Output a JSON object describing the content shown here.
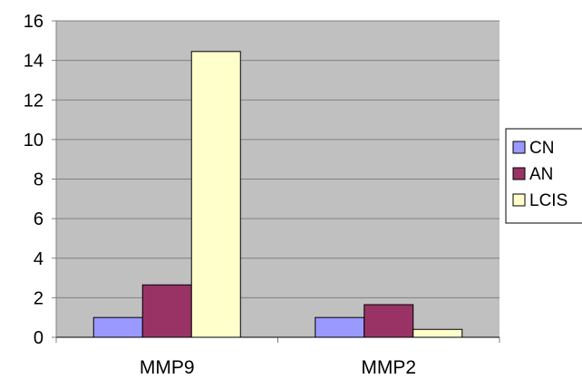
{
  "chart_data": {
    "type": "bar",
    "title": "",
    "xlabel": "",
    "ylabel": "",
    "categories": [
      "MMP9",
      "MMP2"
    ],
    "series": [
      {
        "name": "CN",
        "values": [
          1.0,
          1.0
        ],
        "color": "#9999ff"
      },
      {
        "name": "AN",
        "values": [
          2.65,
          1.65
        ],
        "color": "#993366"
      },
      {
        "name": "LCIS",
        "values": [
          14.45,
          0.4
        ],
        "color": "#ffffcc"
      }
    ],
    "ylim": [
      0,
      16
    ],
    "yticks": [
      "0",
      "2",
      "4",
      "6",
      "8",
      "10",
      "12",
      "14",
      "16"
    ],
    "grid": true,
    "plot_background": "#c0c0c0",
    "legend_position": "right"
  }
}
